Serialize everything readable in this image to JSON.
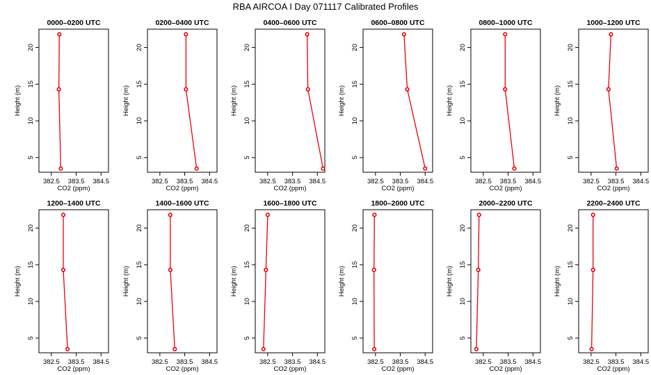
{
  "figure_title": "RBA AIRCOA I  Day 071117  Calibrated Profiles",
  "chart_data": [
    {
      "type": "line",
      "title": "0000–0200 UTC",
      "xlabel": "CO2 (ppm)",
      "ylabel": "Height (m)",
      "xlim": [
        382.0,
        384.8
      ],
      "ylim": [
        3,
        22.5
      ],
      "xticks": [
        382.5,
        383.5,
        384.5
      ],
      "xtick_labels": [
        "382.5",
        "383.5",
        "384.5"
      ],
      "yticks": [
        5,
        10,
        15,
        20
      ],
      "ytick_labels": [
        "5",
        "10",
        "15",
        "20"
      ],
      "co2": [
        382.88,
        382.8,
        382.82
      ],
      "height": [
        3.5,
        14.3,
        21.8
      ]
    },
    {
      "type": "line",
      "title": "0200–0400 UTC",
      "xlabel": "CO2 (ppm)",
      "ylabel": "Height (m)",
      "xlim": [
        382.0,
        384.8
      ],
      "ylim": [
        3,
        22.5
      ],
      "xticks": [
        382.5,
        383.5,
        384.5
      ],
      "xtick_labels": [
        "382.5",
        "383.5",
        "384.5"
      ],
      "yticks": [
        5,
        10,
        15,
        20
      ],
      "ytick_labels": [
        "5",
        "10",
        "15",
        "20"
      ],
      "co2": [
        383.98,
        383.55,
        383.55
      ],
      "height": [
        3.5,
        14.3,
        21.8
      ]
    },
    {
      "type": "line",
      "title": "0400–0600 UTC",
      "xlabel": "CO2 (ppm)",
      "ylabel": "Height (m)",
      "xlim": [
        382.0,
        384.8
      ],
      "ylim": [
        3,
        22.5
      ],
      "xticks": [
        382.5,
        383.5,
        384.5
      ],
      "xtick_labels": [
        "382.5",
        "383.5",
        "384.5"
      ],
      "yticks": [
        5,
        10,
        15,
        20
      ],
      "ytick_labels": [
        "5",
        "10",
        "15",
        "20"
      ],
      "co2": [
        384.73,
        384.12,
        384.09
      ],
      "height": [
        3.5,
        14.3,
        21.8
      ]
    },
    {
      "type": "line",
      "title": "0600–0800 UTC",
      "xlabel": "CO2 (ppm)",
      "ylabel": "Height (m)",
      "xlim": [
        382.0,
        384.8
      ],
      "ylim": [
        3,
        22.5
      ],
      "xticks": [
        382.5,
        383.5,
        384.5
      ],
      "xtick_labels": [
        "382.5",
        "383.5",
        "384.5"
      ],
      "yticks": [
        5,
        10,
        15,
        20
      ],
      "ytick_labels": [
        "5",
        "10",
        "15",
        "20"
      ],
      "co2": [
        384.5,
        383.78,
        383.65
      ],
      "height": [
        3.5,
        14.3,
        21.8
      ]
    },
    {
      "type": "line",
      "title": "0800–1000 UTC",
      "xlabel": "CO2 (ppm)",
      "ylabel": "Height (m)",
      "xlim": [
        382.0,
        384.8
      ],
      "ylim": [
        3,
        22.5
      ],
      "xticks": [
        382.5,
        383.5,
        384.5
      ],
      "xtick_labels": [
        "382.5",
        "383.5",
        "384.5"
      ],
      "yticks": [
        5,
        10,
        15,
        20
      ],
      "ytick_labels": [
        "5",
        "10",
        "15",
        "20"
      ],
      "co2": [
        383.75,
        383.38,
        383.38
      ],
      "height": [
        3.5,
        14.3,
        21.8
      ]
    },
    {
      "type": "line",
      "title": "1000–1200 UTC",
      "xlabel": "CO2 (ppm)",
      "ylabel": "Height (m)",
      "xlim": [
        382.0,
        384.8
      ],
      "ylim": [
        3,
        22.5
      ],
      "xticks": [
        382.5,
        383.5,
        384.5
      ],
      "xtick_labels": [
        "382.5",
        "383.5",
        "384.5"
      ],
      "yticks": [
        5,
        10,
        15,
        20
      ],
      "ytick_labels": [
        "5",
        "10",
        "15",
        "20"
      ],
      "co2": [
        383.53,
        383.2,
        383.3
      ],
      "height": [
        3.5,
        14.3,
        21.8
      ]
    },
    {
      "type": "line",
      "title": "1200–1400 UTC",
      "xlabel": "CO2 (ppm)",
      "ylabel": "Height (m)",
      "xlim": [
        382.0,
        384.8
      ],
      "ylim": [
        3,
        22.5
      ],
      "xticks": [
        382.5,
        383.5,
        384.5
      ],
      "xtick_labels": [
        "382.5",
        "383.5",
        "384.5"
      ],
      "yticks": [
        5,
        10,
        15,
        20
      ],
      "ytick_labels": [
        "5",
        "10",
        "15",
        "20"
      ],
      "co2": [
        383.15,
        382.98,
        382.98
      ],
      "height": [
        3.5,
        14.3,
        21.8
      ]
    },
    {
      "type": "line",
      "title": "1400–1600 UTC",
      "xlabel": "CO2 (ppm)",
      "ylabel": "Height (m)",
      "xlim": [
        382.0,
        384.8
      ],
      "ylim": [
        3,
        22.5
      ],
      "xticks": [
        382.5,
        383.5,
        384.5
      ],
      "xtick_labels": [
        "382.5",
        "383.5",
        "384.5"
      ],
      "yticks": [
        5,
        10,
        15,
        20
      ],
      "ytick_labels": [
        "5",
        "10",
        "15",
        "20"
      ],
      "co2": [
        383.1,
        382.92,
        382.92
      ],
      "height": [
        3.5,
        14.3,
        21.8
      ]
    },
    {
      "type": "line",
      "title": "1600–1800 UTC",
      "xlabel": "CO2 (ppm)",
      "ylabel": "Height (m)",
      "xlim": [
        382.0,
        384.8
      ],
      "ylim": [
        3,
        22.5
      ],
      "xticks": [
        382.5,
        383.5,
        384.5
      ],
      "xtick_labels": [
        "382.5",
        "383.5",
        "384.5"
      ],
      "yticks": [
        5,
        10,
        15,
        20
      ],
      "ytick_labels": [
        "5",
        "10",
        "15",
        "20"
      ],
      "co2": [
        382.33,
        382.43,
        382.5
      ],
      "height": [
        3.5,
        14.3,
        21.8
      ]
    },
    {
      "type": "line",
      "title": "1800–2000 UTC",
      "xlabel": "CO2 (ppm)",
      "ylabel": "Height (m)",
      "xlim": [
        382.0,
        384.8
      ],
      "ylim": [
        3,
        22.5
      ],
      "xticks": [
        382.5,
        383.5,
        384.5
      ],
      "xtick_labels": [
        "382.5",
        "383.5",
        "384.5"
      ],
      "yticks": [
        5,
        10,
        15,
        20
      ],
      "ytick_labels": [
        "5",
        "10",
        "15",
        "20"
      ],
      "co2": [
        382.45,
        382.44,
        382.46
      ],
      "height": [
        3.5,
        14.3,
        21.8
      ]
    },
    {
      "type": "line",
      "title": "2000–2200 UTC",
      "xlabel": "CO2 (ppm)",
      "ylabel": "Height (m)",
      "xlim": [
        382.0,
        384.8
      ],
      "ylim": [
        3,
        22.5
      ],
      "xticks": [
        382.5,
        383.5,
        384.5
      ],
      "xtick_labels": [
        "382.5",
        "383.5",
        "384.5"
      ],
      "yticks": [
        5,
        10,
        15,
        20
      ],
      "ytick_labels": [
        "5",
        "10",
        "15",
        "20"
      ],
      "co2": [
        382.22,
        382.3,
        382.33
      ],
      "height": [
        3.5,
        14.3,
        21.8
      ]
    },
    {
      "type": "line",
      "title": "2200–2400 UTC",
      "xlabel": "CO2 (ppm)",
      "ylabel": "Height (m)",
      "xlim": [
        382.0,
        384.8
      ],
      "ylim": [
        3,
        22.5
      ],
      "xticks": [
        382.5,
        383.5,
        384.5
      ],
      "xtick_labels": [
        "382.5",
        "383.5",
        "384.5"
      ],
      "yticks": [
        5,
        10,
        15,
        20
      ],
      "ytick_labels": [
        "5",
        "10",
        "15",
        "20"
      ],
      "co2": [
        382.52,
        382.58,
        382.58
      ],
      "height": [
        3.5,
        14.3,
        21.8
      ]
    }
  ]
}
